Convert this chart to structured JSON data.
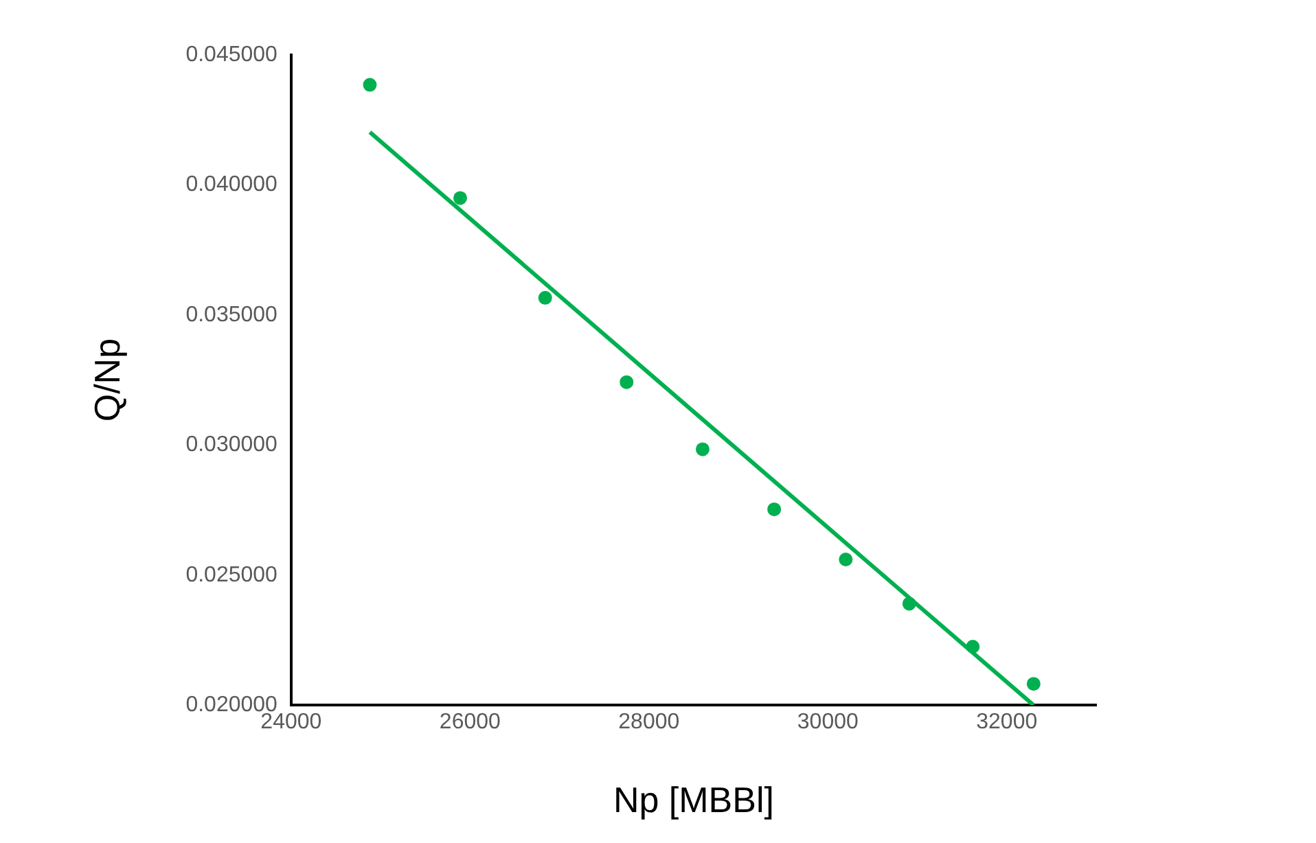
{
  "chart_data": {
    "type": "scatter",
    "xlabel": "Np [MBBl]",
    "ylabel": "Q/Np",
    "xlim": [
      24000,
      33000
    ],
    "xticks": [
      24000,
      26000,
      28000,
      30000,
      32000
    ],
    "ylim": [
      0.02,
      0.045
    ],
    "yticks": [
      {
        "value": 0.02,
        "label": "0.020000"
      },
      {
        "value": 0.025,
        "label": "0.025000"
      },
      {
        "value": 0.03,
        "label": "0.030000"
      },
      {
        "value": 0.035,
        "label": "0.035000"
      },
      {
        "value": 0.04,
        "label": "0.040000"
      },
      {
        "value": 0.045,
        "label": "0.045000"
      }
    ],
    "grid": false,
    "legend": false,
    "series": [
      {
        "type": "scatter",
        "marker": "circle",
        "color": "#00b050",
        "x": [
          24880,
          25890,
          26840,
          27750,
          28600,
          29400,
          30200,
          30910,
          31620,
          32300
        ],
        "values": [
          0.04385,
          0.0395,
          0.03566,
          0.03242,
          0.02984,
          0.02753,
          0.0256,
          0.0239,
          0.02225,
          0.02082
        ]
      },
      {
        "type": "line",
        "color": "#00b050",
        "line_style": "solid",
        "x": [
          24880,
          32300
        ],
        "values": [
          0.04203,
          0.02
        ]
      }
    ]
  }
}
